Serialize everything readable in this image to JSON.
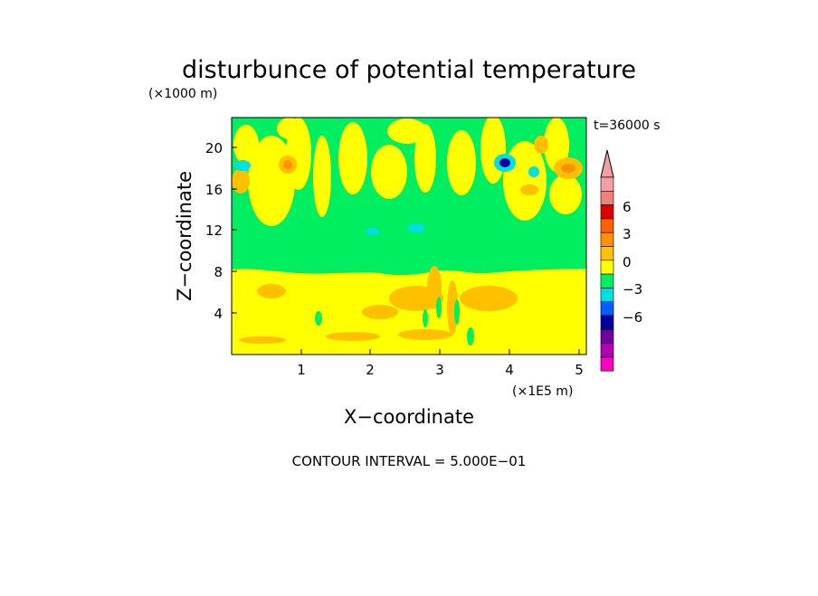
{
  "chart_data": {
    "type": "heatmap",
    "title": "disturbunce of potential temperature",
    "y_unit_label": "(×1000 m)",
    "x_unit_label": "(×1E5 m)",
    "xlabel": "X−coordinate",
    "ylabel": "Z−coordinate",
    "time_label": "t=36000 s",
    "footer": "CONTOUR INTERVAL = 5.000E−01",
    "x_ticks": [
      "1",
      "2",
      "3",
      "4",
      "5"
    ],
    "y_ticks": [
      "4",
      "8",
      "12",
      "16",
      "20"
    ],
    "xlim": [
      0,
      5.1
    ],
    "ylim": [
      0,
      22.8
    ],
    "colorbar": {
      "tick_labels": [
        "6",
        "3",
        "0",
        "−3",
        "−6"
      ],
      "colors": [
        "#f0a0a0",
        "#f08080",
        "#e00000",
        "#ff6000",
        "#ff9000",
        "#ffc000",
        "#ffff00",
        "#00ee60",
        "#00e0e0",
        "#0060ff",
        "#0000a0",
        "#7000a0",
        "#b000b0",
        "#ff00c0"
      ]
    },
    "field_colors": {
      "background": "#ffff00",
      "band": "#00ee60",
      "warm": "#ffc000",
      "warmer": "#ff9000",
      "cool": "#00e0e0",
      "cold": "#0000a0"
    }
  }
}
